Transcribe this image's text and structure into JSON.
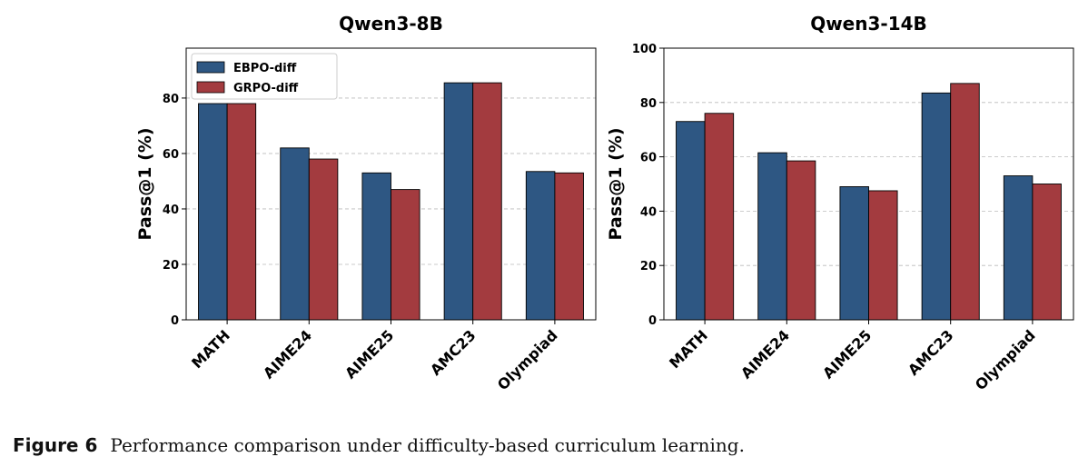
{
  "chart_data": [
    {
      "type": "bar",
      "title": "Qwen3-8B",
      "xlabel": "",
      "ylabel": "Pass@1 (%)",
      "ylim": [
        0,
        98
      ],
      "yticks": [
        "0",
        "20",
        "40",
        "60",
        "80"
      ],
      "categories": [
        "MATH",
        "AIME24",
        "AIME25",
        "AMC23",
        "Olympiad"
      ],
      "series": [
        {
          "name": "EBPO-diff",
          "values": [
            78,
            62,
            53,
            85.5,
            53.5
          ]
        },
        {
          "name": "GRPO-diff",
          "values": [
            78,
            58,
            47,
            85.5,
            53
          ]
        }
      ],
      "legend": "top-left",
      "grid": "y, dashed"
    },
    {
      "type": "bar",
      "title": "Qwen3-14B",
      "xlabel": "",
      "ylabel": "Pass@1 (%)",
      "ylim": [
        0,
        100
      ],
      "yticks": [
        "0",
        "20",
        "40",
        "60",
        "80",
        "100"
      ],
      "categories": [
        "MATH",
        "AIME24",
        "AIME25",
        "AMC23",
        "Olympiad"
      ],
      "series": [
        {
          "name": "EBPO-diff",
          "values": [
            73,
            61.5,
            49,
            83.5,
            53
          ]
        },
        {
          "name": "GRPO-diff",
          "values": [
            76,
            58.5,
            47.5,
            87,
            50
          ]
        }
      ],
      "grid": "y, dashed"
    }
  ],
  "colors": {
    "EBPO-diff": "#2e5783",
    "GRPO-diff": "#a33b3f"
  },
  "caption": {
    "label": "Figure 6",
    "text": "Performance comparison under difficulty-based curriculum learning."
  }
}
